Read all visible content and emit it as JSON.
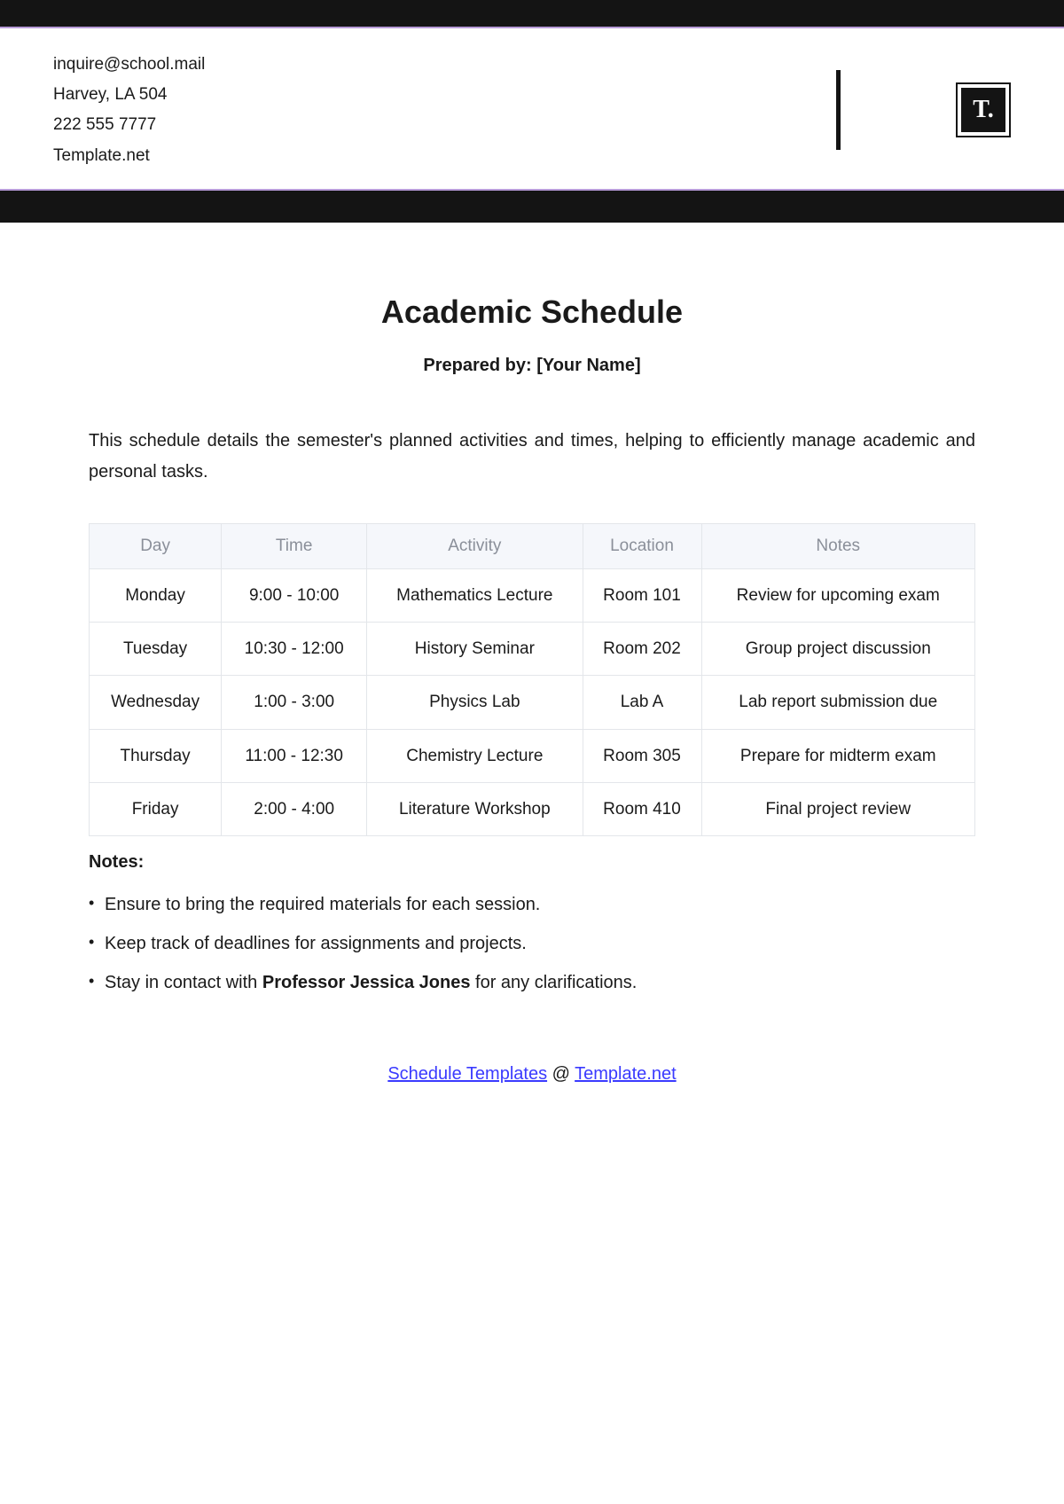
{
  "header": {
    "email": "inquire@school.mail",
    "address": "Harvey, LA 504",
    "phone": "222 555 7777",
    "website": "Template.net",
    "logo_text": "T."
  },
  "title": "Academic Schedule",
  "prepared_by_label": "Prepared by: ",
  "prepared_by_value": "[Your Name]",
  "description": "This schedule details the semester's planned activities and times, helping to efficiently manage academic and personal tasks.",
  "table": {
    "columns": [
      "Day",
      "Time",
      "Activity",
      "Location",
      "Notes"
    ],
    "rows": [
      [
        "Monday",
        "9:00 - 10:00",
        "Mathematics Lecture",
        "Room 101",
        "Review for upcoming exam"
      ],
      [
        "Tuesday",
        "10:30 - 12:00",
        "History Seminar",
        "Room 202",
        "Group project discussion"
      ],
      [
        "Wednesday",
        "1:00 - 3:00",
        "Physics Lab",
        "Lab A",
        "Lab report submission due"
      ],
      [
        "Thursday",
        "11:00 - 12:30",
        "Chemistry Lecture",
        "Room 305",
        "Prepare for midterm exam"
      ],
      [
        "Friday",
        "2:00 - 4:00",
        "Literature Workshop",
        "Room 410",
        "Final project review"
      ]
    ]
  },
  "notes_heading": "Notes:",
  "notes": [
    {
      "pre": "Ensure to bring the required materials for each session.",
      "bold": "",
      "post": ""
    },
    {
      "pre": "Keep track of deadlines for assignments and projects.",
      "bold": "",
      "post": ""
    },
    {
      "pre": "Stay in contact with ",
      "bold": "Professor Jessica Jones",
      "post": " for any clarifications."
    }
  ],
  "footer": {
    "link1_text": "Schedule Templates",
    "at": " @ ",
    "link2_text": "Template.net"
  }
}
